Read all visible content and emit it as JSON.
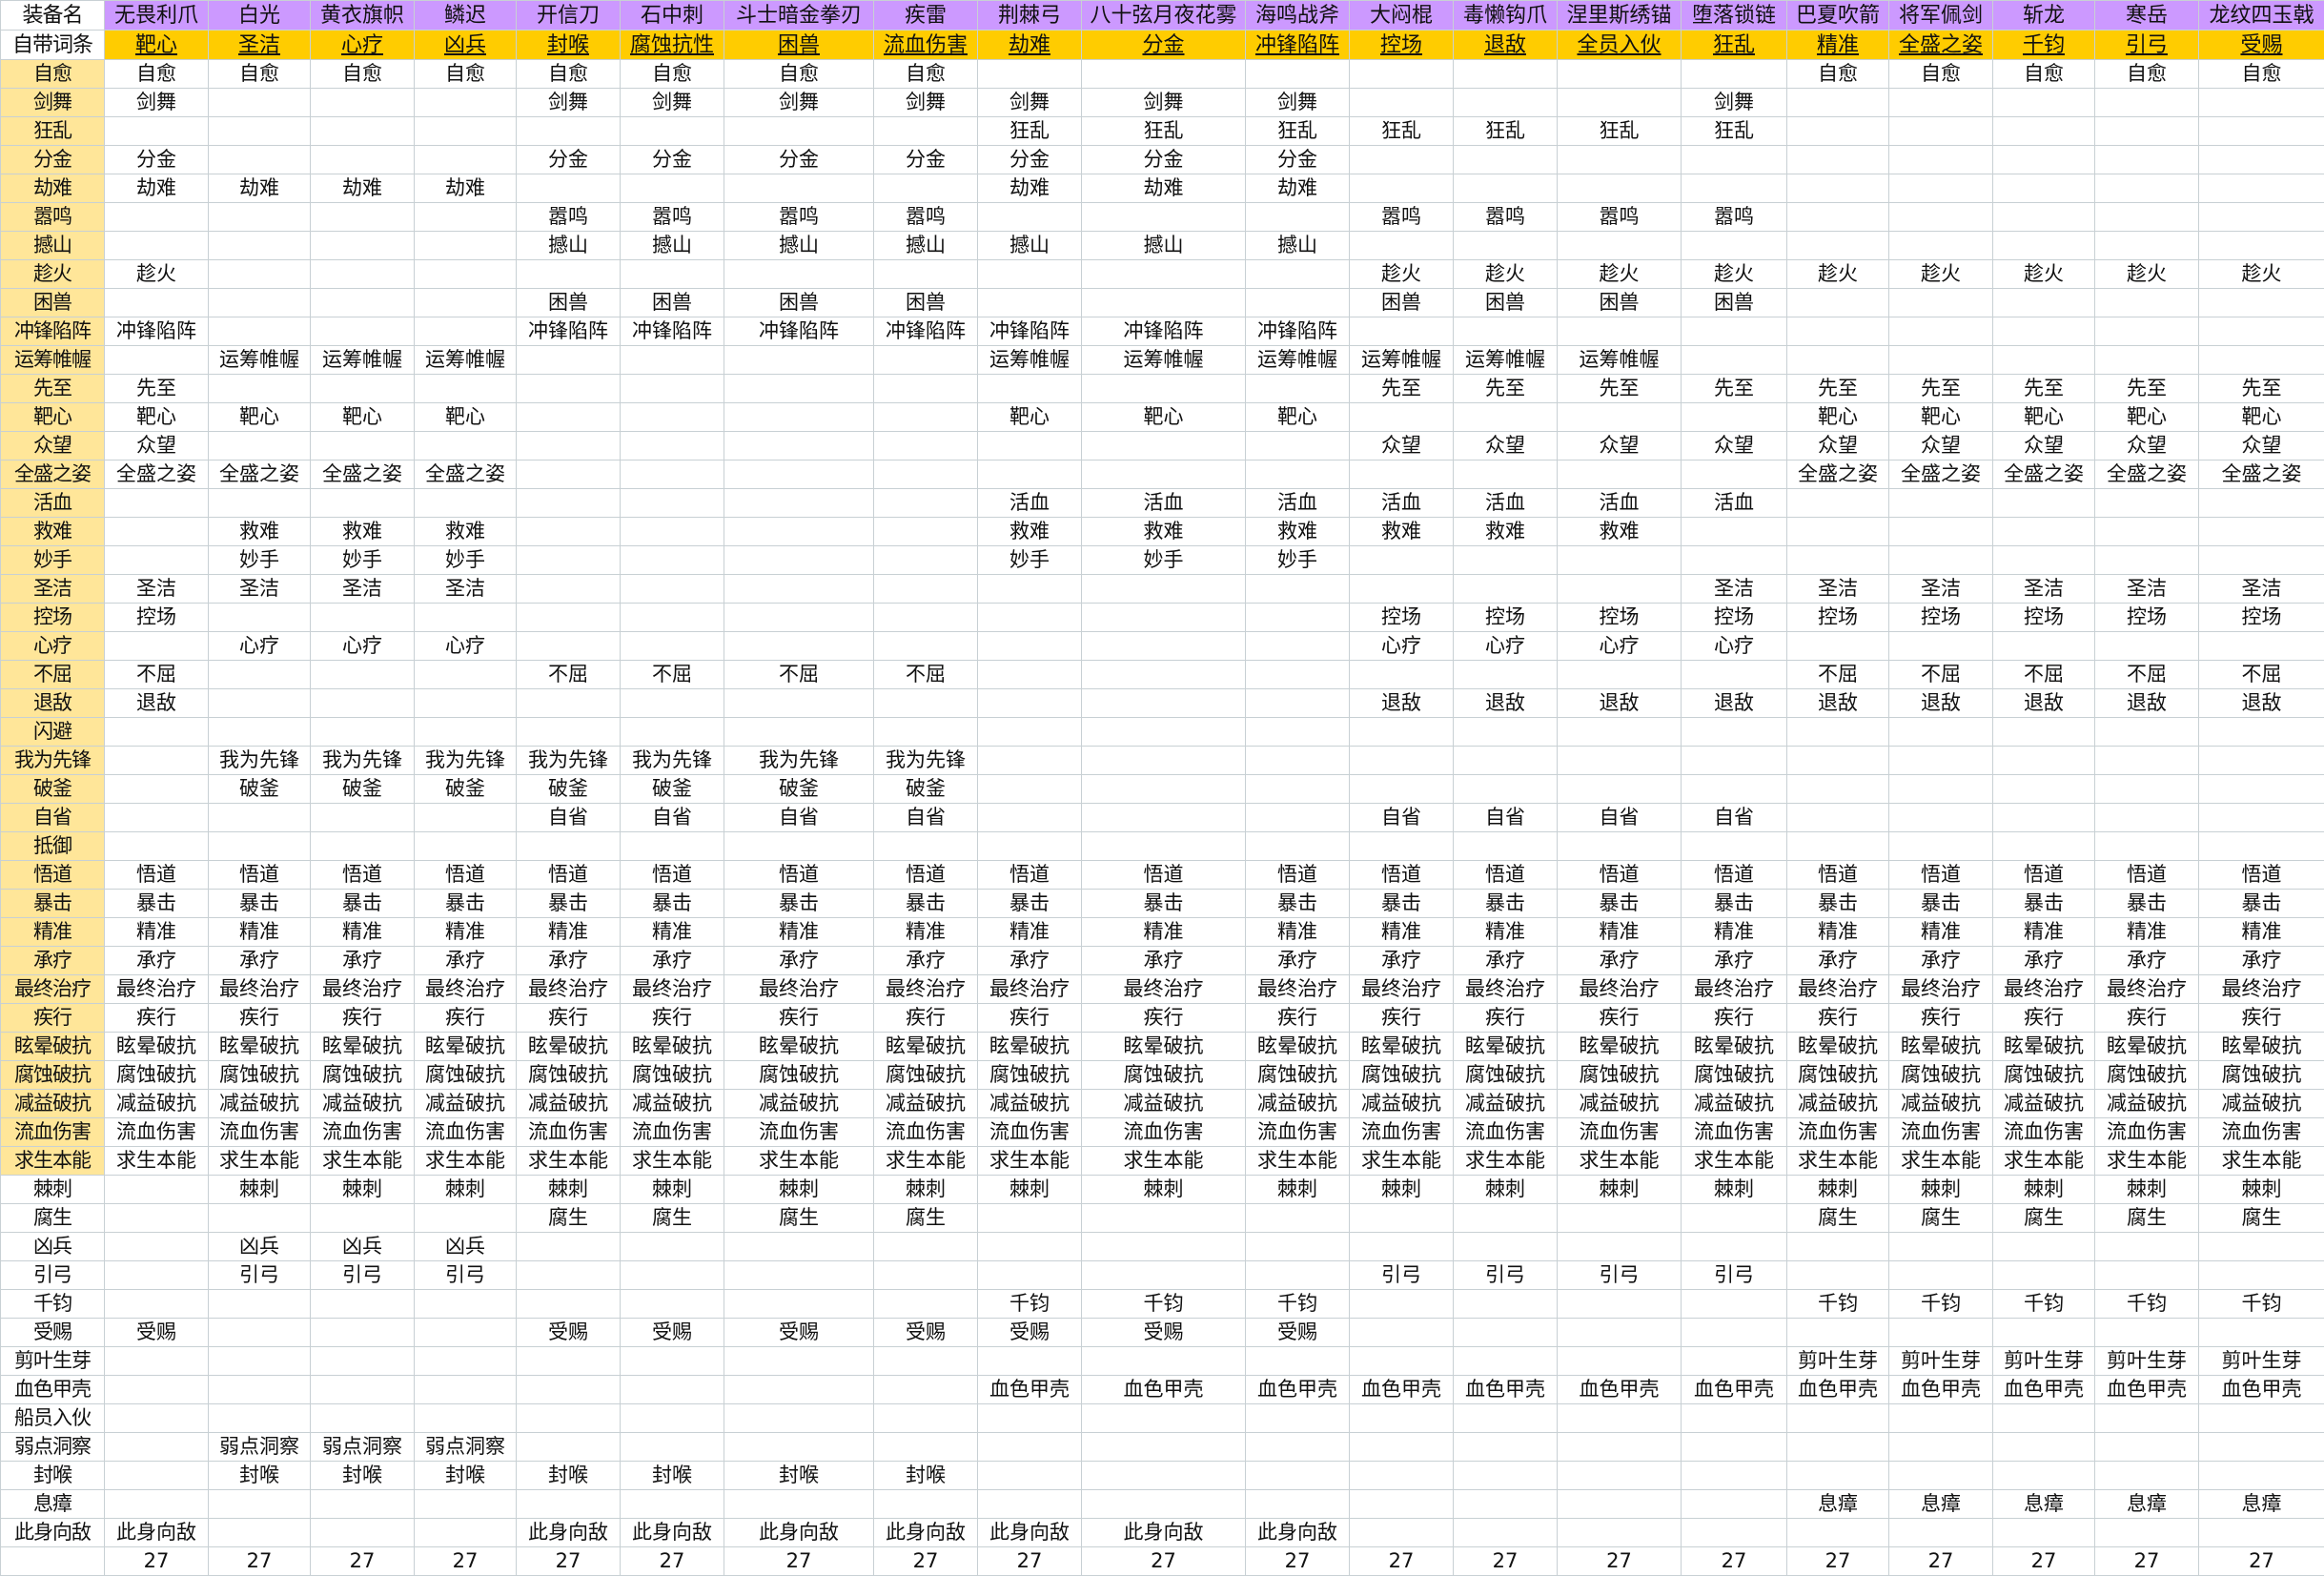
{
  "header": {
    "name_label": "装备名",
    "trait_label": "自带词条",
    "equipment": [
      "无畏利爪",
      "白光",
      "黄衣旗帜",
      "鳞迟",
      "开信刀",
      "石中刺",
      "斗士暗金拳刃",
      "疾雷",
      "荆棘弓",
      "八十弦月夜花雾",
      "海鸣战斧",
      "大闷棍",
      "毒懒钩爪",
      "涅里斯绣锚",
      "堕落锁链",
      "巴夏吹箭",
      "将军佩剑",
      "斩龙",
      "寒岳",
      "龙纹四玉戟"
    ],
    "native_traits": [
      "靶心",
      "圣洁",
      "心疗",
      "凶兵",
      "封喉",
      "腐蚀抗性",
      "困兽",
      "流血伤害",
      "劫难",
      "分金",
      "冲锋陷阵",
      "控场",
      "退敌",
      "全员入伙",
      "狂乱",
      "精准",
      "全盛之姿",
      "千钧",
      "引弓",
      "受赐"
    ]
  },
  "colors": {
    "header_bg": "#cc99ff",
    "trait_bg": "#ffcc00",
    "label_bg": "#ffe699",
    "grid": "#c8d0d4"
  },
  "rows": [
    {
      "label": "自愈",
      "mask": "11111111000000011111",
      "highlight": true
    },
    {
      "label": "剑舞",
      "mask": "10001111111000100000",
      "highlight": true
    },
    {
      "label": "狂乱",
      "mask": "00000000111111100000",
      "highlight": true
    },
    {
      "label": "分金",
      "mask": "10001111111000000000",
      "highlight": true
    },
    {
      "label": "劫难",
      "mask": "11110000111000000000",
      "highlight": true
    },
    {
      "label": "嚣鸣",
      "mask": "00001111000111100000",
      "highlight": true
    },
    {
      "label": "撼山",
      "mask": "00001111111000000000",
      "highlight": true
    },
    {
      "label": "趁火",
      "mask": "10000000000111111111",
      "highlight": true
    },
    {
      "label": "困兽",
      "mask": "00001111000111100000",
      "highlight": true
    },
    {
      "label": "冲锋陷阵",
      "mask": "10001111111000000000",
      "highlight": true
    },
    {
      "label": "运筹帷幄",
      "mask": "01110000111111000000",
      "highlight": true
    },
    {
      "label": "先至",
      "mask": "10000000000111111111",
      "highlight": true
    },
    {
      "label": "靶心",
      "mask": "11110000111000011111",
      "highlight": true
    },
    {
      "label": "众望",
      "mask": "10000000000111111111",
      "highlight": true
    },
    {
      "label": "全盛之姿",
      "mask": "11110000000000011111",
      "highlight": true
    },
    {
      "label": "活血",
      "mask": "00000000111111100000",
      "highlight": true
    },
    {
      "label": "救难",
      "mask": "01110000111111000000",
      "highlight": true
    },
    {
      "label": "妙手",
      "mask": "01110000111000000000",
      "highlight": true
    },
    {
      "label": "圣洁",
      "mask": "11110000000000111111",
      "highlight": true
    },
    {
      "label": "控场",
      "mask": "10000000000111111111",
      "highlight": true
    },
    {
      "label": "心疗",
      "mask": "01110000000111100000",
      "highlight": true
    },
    {
      "label": "不屈",
      "mask": "10001111000000011111",
      "highlight": true
    },
    {
      "label": "退敌",
      "mask": "10000000000111111111",
      "highlight": true
    },
    {
      "label": "闪避",
      "mask": "00000000000000000000",
      "highlight": true
    },
    {
      "label": "我为先锋",
      "mask": "01111111000000000000",
      "highlight": true
    },
    {
      "label": "破釜",
      "mask": "01111111000000000000",
      "highlight": true
    },
    {
      "label": "自省",
      "mask": "00001111000111100000",
      "highlight": true
    },
    {
      "label": "抵御",
      "mask": "00000000000000000000",
      "highlight": true
    },
    {
      "label": "悟道",
      "mask": "11111111111111111111",
      "highlight": true
    },
    {
      "label": "暴击",
      "mask": "11111111111111111111",
      "highlight": true
    },
    {
      "label": "精准",
      "mask": "11111111111111111111",
      "highlight": true
    },
    {
      "label": "承疗",
      "mask": "11111111111111111111",
      "highlight": true
    },
    {
      "label": "最终治疗",
      "mask": "11111111111111111111",
      "highlight": true
    },
    {
      "label": "疾行",
      "mask": "11111111111111111111",
      "highlight": true
    },
    {
      "label": "眩晕破抗",
      "mask": "11111111111111111111",
      "highlight": true
    },
    {
      "label": "腐蚀破抗",
      "mask": "11111111111111111111",
      "highlight": true
    },
    {
      "label": "减益破抗",
      "mask": "11111111111111111111",
      "highlight": true
    },
    {
      "label": "流血伤害",
      "mask": "11111111111111111111",
      "highlight": true
    },
    {
      "label": "求生本能",
      "mask": "11111111111111111111",
      "highlight": true
    },
    {
      "label": "棘刺",
      "mask": "01111111111111111111",
      "highlight": false
    },
    {
      "label": "腐生",
      "mask": "00001111000000011111",
      "highlight": false
    },
    {
      "label": "凶兵",
      "mask": "01110000000000000000",
      "highlight": false
    },
    {
      "label": "引弓",
      "mask": "01110000000111100000",
      "highlight": false
    },
    {
      "label": "千钧",
      "mask": "00000000111000011111",
      "highlight": false
    },
    {
      "label": "受赐",
      "mask": "10001111111000000000",
      "highlight": false
    },
    {
      "label": "剪叶生芽",
      "mask": "00000000000000011111",
      "highlight": false
    },
    {
      "label": "血色甲壳",
      "mask": "00000000111111111111",
      "highlight": false
    },
    {
      "label": "船员入伙",
      "mask": "00000000000000000000",
      "highlight": false
    },
    {
      "label": "弱点洞察",
      "mask": "01110000000000000000",
      "highlight": false
    },
    {
      "label": "封喉",
      "mask": "01111111000000000000",
      "highlight": false
    },
    {
      "label": "息瘴",
      "mask": "00000000000000011111",
      "highlight": false
    },
    {
      "label": "此身向敌",
      "mask": "10001111111000000000",
      "highlight": false
    }
  ],
  "totals": [
    "27",
    "27",
    "27",
    "27",
    "27",
    "27",
    "27",
    "27",
    "27",
    "27",
    "27",
    "27",
    "27",
    "27",
    "27",
    "27",
    "27",
    "27",
    "27",
    "27"
  ]
}
